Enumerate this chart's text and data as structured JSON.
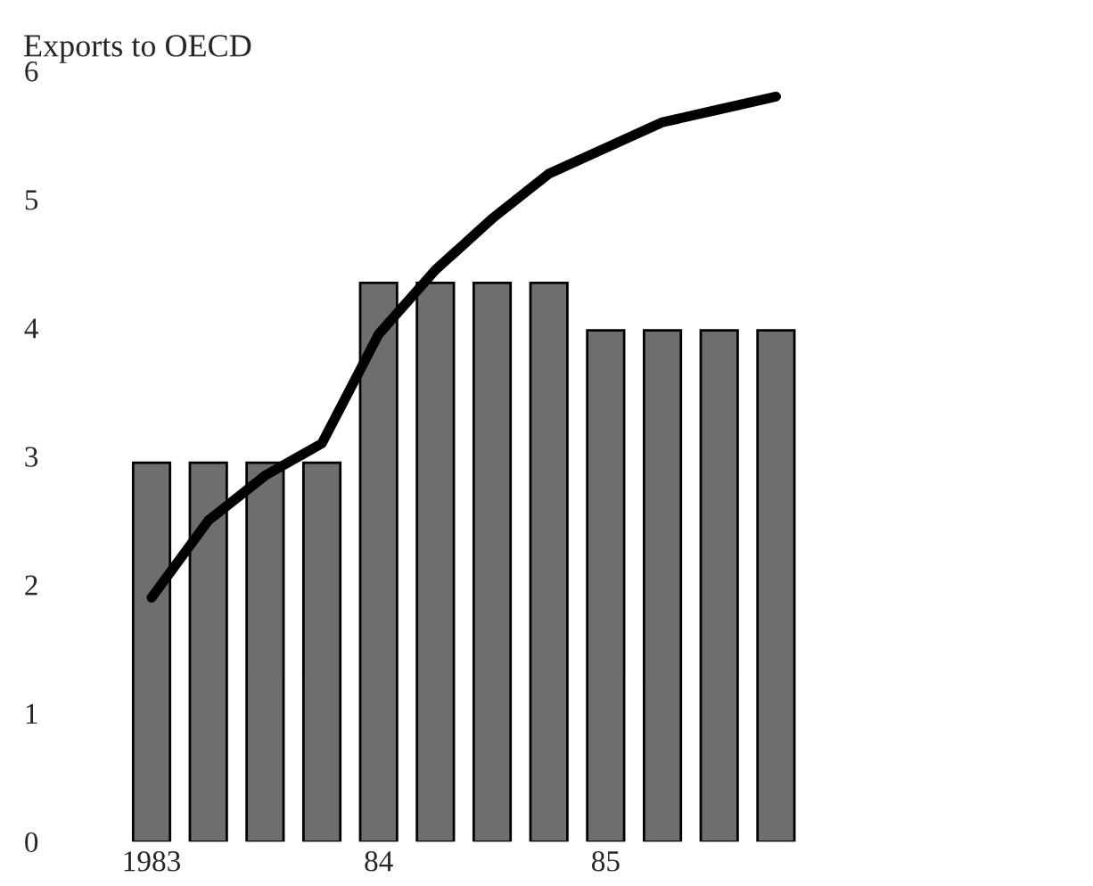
{
  "chart_data": {
    "type": "bar",
    "ylabel": "Exports to OECD",
    "categories": [
      "1983",
      null,
      null,
      null,
      "84",
      null,
      null,
      null,
      "85",
      null,
      null,
      null
    ],
    "series": [
      {
        "color": "#6e6e6e",
        "values": [
          2.95,
          2.95,
          2.95,
          2.95,
          4.35,
          4.35,
          4.35,
          4.35,
          3.98,
          3.98,
          3.98,
          3.98
        ]
      },
      {
        "type": "line",
        "color": "#000000",
        "values": [
          1.9,
          2.5,
          2.85,
          3.1,
          3.95,
          4.45,
          4.85,
          5.2,
          5.4,
          5.6,
          5.7,
          5.8
        ]
      }
    ],
    "ylim": [
      0,
      6
    ],
    "yticks": [
      0,
      1,
      2,
      3,
      4,
      5,
      6
    ],
    "grid": false,
    "legend": false,
    "marker": "none",
    "line_style": "solid"
  }
}
